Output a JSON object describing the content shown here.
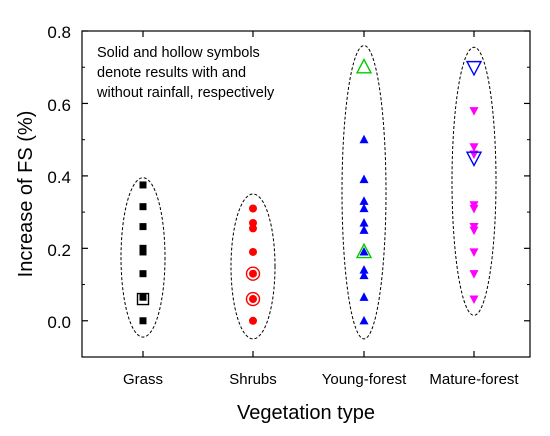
{
  "chart_data": {
    "type": "scatter",
    "xlabel": "Vegetation type",
    "ylabel": "Increase of FS (%)",
    "ylim": [
      -0.1,
      0.8
    ],
    "yticks": [
      "0.0",
      "0.2",
      "0.4",
      "0.6",
      "0.8"
    ],
    "categories": [
      "Grass",
      "Shrubs",
      "Young-forest",
      "Mature-forest"
    ],
    "annotation": [
      "Solid and hollow symbols",
      "denote results with and",
      "without rainfall, respectively"
    ],
    "grid": false,
    "series": [
      {
        "category": "Grass",
        "marker": "square",
        "color": "#000000",
        "solid": [
          0.375,
          0.315,
          0.26,
          0.2,
          0.19,
          0.13,
          0.065,
          0.0
        ],
        "hollow": [
          0.06
        ],
        "ellipse": {
          "center": 0.175,
          "half_height": 0.22
        }
      },
      {
        "category": "Shrubs",
        "marker": "circle",
        "color": "#ff0000",
        "solid": [
          0.31,
          0.27,
          0.255,
          0.19,
          0.13,
          0.06,
          0.0
        ],
        "hollow": [
          0.13,
          0.06
        ],
        "ellipse": {
          "center": 0.15,
          "half_height": 0.2
        }
      },
      {
        "category": "Young-forest",
        "marker": "triangle-up",
        "color": "#0000ff",
        "hollow_color": "#00cc00",
        "solid": [
          0.5,
          0.39,
          0.33,
          0.31,
          0.27,
          0.25,
          0.19,
          0.14,
          0.125,
          0.065,
          0.0
        ],
        "hollow": [
          0.7,
          0.19
        ],
        "ellipse": {
          "center": 0.355,
          "half_height": 0.405
        }
      },
      {
        "category": "Mature-forest",
        "marker": "triangle-down",
        "color": "#ff00ff",
        "hollow_color": "#0000ff",
        "solid": [
          0.58,
          0.48,
          0.46,
          0.32,
          0.31,
          0.26,
          0.25,
          0.19,
          0.13,
          0.06
        ],
        "hollow": [
          0.7,
          0.45
        ],
        "ellipse": {
          "center": 0.385,
          "half_height": 0.37
        }
      }
    ]
  }
}
